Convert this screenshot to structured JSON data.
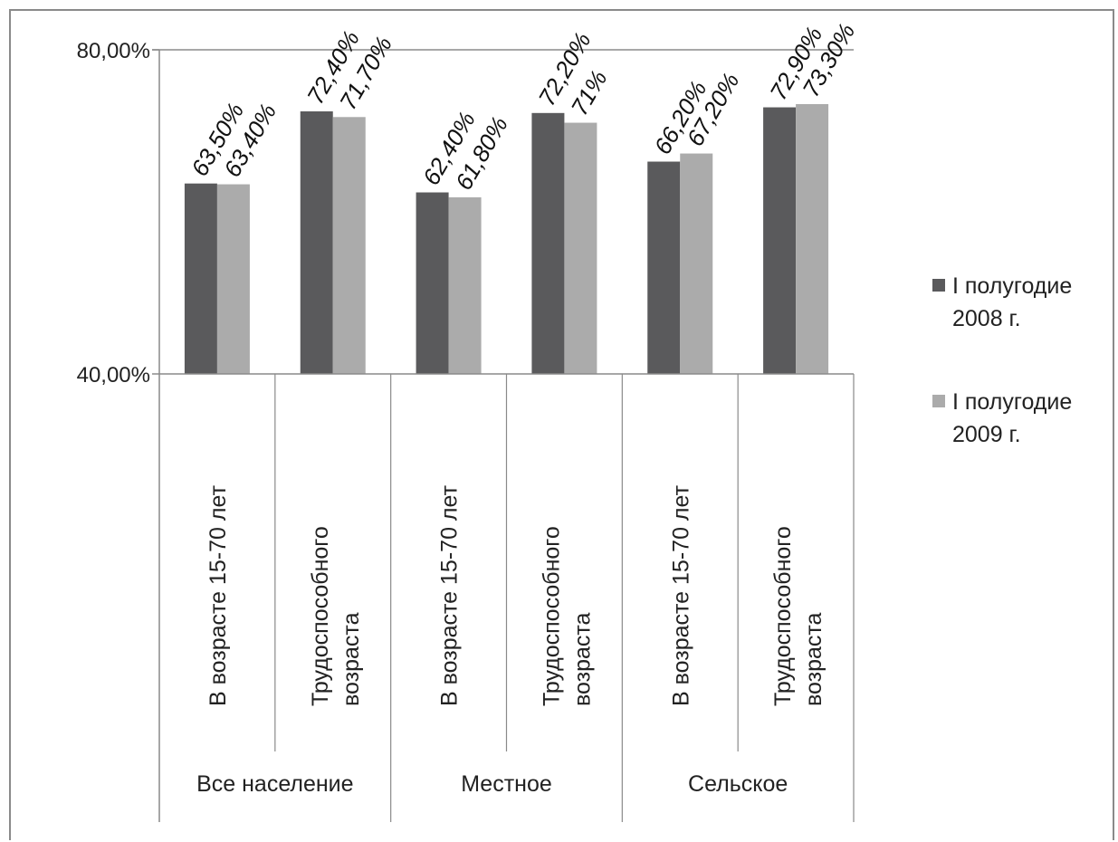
{
  "chart_data": {
    "type": "bar",
    "title": "",
    "xlabel": "",
    "ylabel": "",
    "ylim": [
      0.4,
      0.8
    ],
    "y_ticks": [
      "40,00%",
      "80,00%"
    ],
    "y_tick_values": [
      0.4,
      0.8
    ],
    "grid": false,
    "legend_position": "right",
    "groups": [
      {
        "label": "Все население",
        "categories": [
          "В возрасте 15-70 лет",
          "Трудоспособного возраста"
        ]
      },
      {
        "label": "Местное",
        "categories": [
          "В возрасте 15-70 лет",
          "Трудоспособного возраста"
        ]
      },
      {
        "label": "Сельское",
        "categories": [
          "В возрасте 15-70 лет",
          "Трудоспособного возраста"
        ]
      }
    ],
    "categories": [
      "В возрасте 15-70 лет",
      "Трудоспособного возраста",
      "В возрасте 15-70 лет",
      "Трудоспособного возраста",
      "В возрасте 15-70 лет",
      "Трудоспособного возраста"
    ],
    "series": [
      {
        "name": "I полугодие 2008 г.",
        "color": "#5a5a5c",
        "values": [
          0.635,
          0.724,
          0.624,
          0.722,
          0.662,
          0.729
        ],
        "labels": [
          "63,50%",
          "72,40%",
          "62,40%",
          "72,20%",
          "66,20%",
          "72,90%"
        ]
      },
      {
        "name": "I полугодие 2009 г.",
        "color": "#ababab",
        "values": [
          0.634,
          0.717,
          0.618,
          0.71,
          0.672,
          0.733
        ],
        "labels": [
          "63,40%",
          "71,70%",
          "61,80%",
          "71%",
          "67,20%",
          "73,30%"
        ]
      }
    ]
  }
}
